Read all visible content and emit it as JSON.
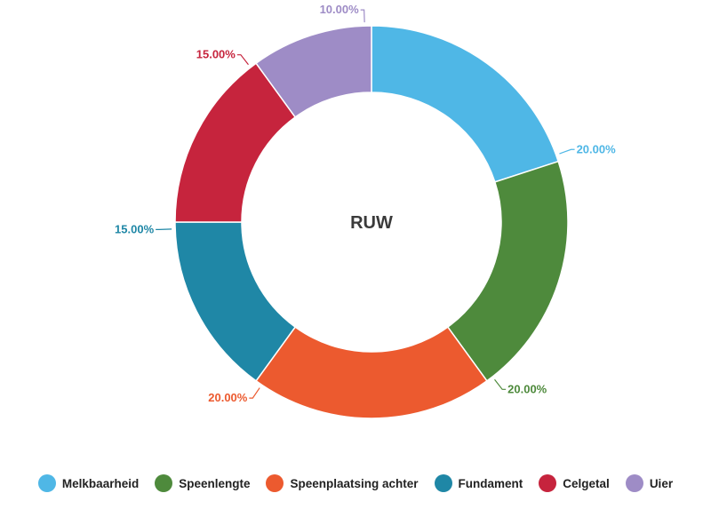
{
  "chart_data": {
    "type": "pie",
    "donut": true,
    "center_label": "RUW",
    "categories": [
      "Melkbaarheid",
      "Speenlengte",
      "Speenplaatsing achter",
      "Fundament",
      "Celgetal",
      "Uier"
    ],
    "values": [
      20.0,
      20.0,
      20.0,
      15.0,
      15.0,
      10.0
    ],
    "value_labels": [
      "20.00%",
      "20.00%",
      "20.00%",
      "15.00%",
      "15.00%",
      "10.00%"
    ],
    "colors": [
      "#4fb7e6",
      "#4e8a3c",
      "#ec5a2f",
      "#1f87a6",
      "#c6243d",
      "#9e8cc6"
    ],
    "legend_placement": "bottom"
  }
}
